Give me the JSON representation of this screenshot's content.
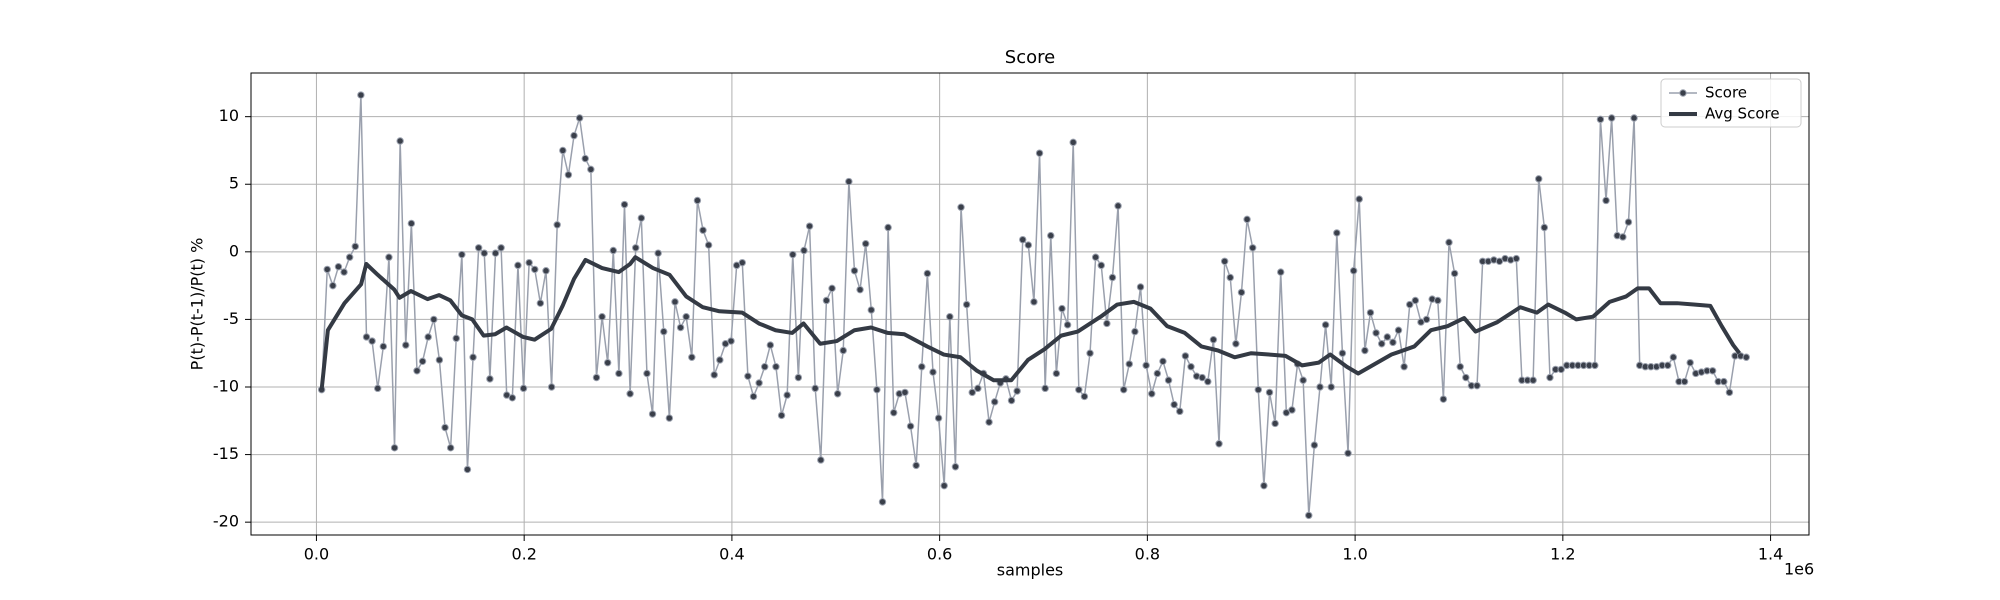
{
  "chart_data": {
    "type": "line",
    "title": "Score",
    "xlabel": "samples",
    "ylabel": "P(t)-P(t-1)/P(t) %",
    "x_offset_label": "1e6",
    "xlim": [
      -63000,
      1437000
    ],
    "ylim": [
      -20.95,
      13.23
    ],
    "xticks": [
      {
        "value": 0,
        "label": "0.0"
      },
      {
        "value": 200000,
        "label": "0.2"
      },
      {
        "value": 400000,
        "label": "0.4"
      },
      {
        "value": 600000,
        "label": "0.6"
      },
      {
        "value": 800000,
        "label": "0.8"
      },
      {
        "value": 1000000,
        "label": "1.0"
      },
      {
        "value": 1200000,
        "label": "1.2"
      },
      {
        "value": 1400000,
        "label": "1.4"
      }
    ],
    "yticks": [
      -20,
      -15,
      -10,
      -5,
      0,
      5,
      10
    ],
    "grid": true,
    "legend": "upper right",
    "series": [
      {
        "name": "Score",
        "color": "#9aa0ad",
        "marker_color": "#3a3f4a",
        "marker": true,
        "line_width": 1.5,
        "x": [
          5000,
          10400,
          15800,
          21200,
          26600,
          32000,
          37400,
          42800,
          48200,
          53600,
          59000,
          64400,
          69800,
          75200,
          80600,
          86000,
          91400,
          96800,
          102200,
          107600,
          113000,
          118400,
          123800,
          129200,
          134600,
          140000,
          145400,
          150800,
          156200,
          161600,
          167000,
          172400,
          177800,
          183200,
          188600,
          194000,
          199400,
          204800,
          210200,
          215600,
          221000,
          226400,
          231800,
          237200,
          242600,
          248000,
          253400,
          258800,
          264200,
          269600,
          275000,
          280400,
          285800,
          291200,
          296600,
          302000,
          307400,
          312800,
          318200,
          323600,
          329000,
          334400,
          339800,
          345200,
          350600,
          356000,
          361400,
          366800,
          372200,
          377600,
          383000,
          388400,
          393800,
          399200,
          404600,
          410000,
          415400,
          420800,
          426200,
          431600,
          437000,
          442400,
          447800,
          453200,
          458600,
          464000,
          469400,
          474800,
          480200,
          485600,
          491000,
          496400,
          501800,
          507200,
          512600,
          518000,
          523400,
          528800,
          534200,
          539600,
          545000,
          550400,
          555800,
          561200,
          566600,
          572000,
          577400,
          582800,
          588200,
          593600,
          599000,
          604400,
          609800,
          615200,
          620600,
          626000,
          631400,
          636800,
          642200,
          647600,
          653000,
          658400,
          663800,
          669200,
          674600,
          680000,
          685400,
          690800,
          696200,
          701600,
          707000,
          712400,
          717800,
          723200,
          728600,
          734000,
          739400,
          744800,
          750200,
          755600,
          761000,
          766400,
          771800,
          777200,
          782600,
          788000,
          793400,
          798800,
          804200,
          809600,
          815000,
          820400,
          825800,
          831200,
          836600,
          842000,
          847400,
          852800,
          858200,
          863600,
          869000,
          874400,
          879800,
          885200,
          890600,
          896000,
          901400,
          906800,
          912200,
          917600,
          923000,
          928400,
          933800,
          939200,
          944600,
          950000,
          955400,
          960800,
          966200,
          971600,
          977000,
          982400,
          987800,
          993200,
          998600,
          1004000,
          1009400,
          1014800,
          1020200,
          1025600,
          1031000,
          1036400,
          1041800,
          1047200,
          1052600,
          1058000,
          1063400,
          1068800,
          1074200,
          1079600,
          1085000,
          1090400,
          1095800,
          1101200,
          1106600,
          1112000,
          1117400,
          1122800,
          1128200,
          1133600,
          1139000,
          1144400,
          1149800,
          1155200,
          1160600,
          1166000,
          1171400,
          1176800,
          1182200,
          1187600,
          1193000,
          1198400,
          1203800,
          1209200,
          1214600,
          1220000,
          1225400,
          1230800,
          1236200,
          1241600,
          1247000,
          1252400,
          1257800,
          1263200,
          1268600,
          1274000,
          1279400,
          1284800,
          1290200,
          1295600,
          1301000,
          1306400,
          1311800,
          1317200,
          1322600,
          1328000,
          1333400,
          1338800,
          1344200,
          1349600,
          1355000,
          1360400,
          1365800,
          1371200,
          1376600
        ],
        "values": [
          -10.2,
          -1.3,
          -2.5,
          -1.1,
          -1.5,
          -0.4,
          0.4,
          11.6,
          -6.3,
          -6.6,
          -10.1,
          -7.0,
          -0.4,
          -14.5,
          8.2,
          -6.9,
          2.1,
          -8.8,
          -8.1,
          -6.3,
          -5.0,
          -8.0,
          -13.0,
          -14.5,
          -6.4,
          -0.2,
          -16.1,
          -7.8,
          0.3,
          -0.1,
          -9.4,
          -0.1,
          0.3,
          -10.6,
          -10.8,
          -1.0,
          -10.1,
          -0.8,
          -1.3,
          -3.8,
          -1.4,
          -10.0,
          2.0,
          7.5,
          5.7,
          8.6,
          9.9,
          6.9,
          6.1,
          -9.3,
          -4.8,
          -8.2,
          0.1,
          -9.0,
          3.5,
          -10.5,
          0.3,
          2.5,
          -9.0,
          -12.0,
          -0.1,
          -5.9,
          -12.3,
          -3.7,
          -5.6,
          -4.8,
          -7.8,
          3.8,
          1.6,
          0.5,
          -9.1,
          -8.0,
          -6.8,
          -6.6,
          -1.0,
          -0.8,
          -9.2,
          -10.7,
          -9.7,
          -8.5,
          -6.9,
          -8.5,
          -12.1,
          -10.6,
          -0.2,
          -9.3,
          0.1,
          1.9,
          -10.1,
          -15.4,
          -3.6,
          -2.7,
          -10.5,
          -7.3,
          5.2,
          -1.4,
          -2.8,
          0.6,
          -4.3,
          -10.2,
          -18.5,
          1.8,
          -11.9,
          -10.5,
          -10.4,
          -12.9,
          -15.8,
          -8.5,
          -1.6,
          -8.9,
          -12.3,
          -17.3,
          -4.8,
          -15.9,
          3.3,
          -3.9,
          -10.4,
          -10.1,
          -9.0,
          -12.6,
          -11.1,
          -9.7,
          -9.4,
          -11.0,
          -10.3,
          0.9,
          0.5,
          -3.7,
          7.3,
          -10.1,
          1.2,
          -9.0,
          -4.2,
          -5.4,
          8.1,
          -10.2,
          -10.7,
          -7.5,
          -0.4,
          -1.0,
          -5.3,
          -1.9,
          3.4,
          -10.2,
          -8.3,
          -5.9,
          -2.6,
          -8.4,
          -10.5,
          -9.0,
          -8.1,
          -9.5,
          -11.3,
          -11.8,
          -7.7,
          -8.5,
          -9.2,
          -9.3,
          -9.6,
          -6.5,
          -14.2,
          -0.7,
          -1.9,
          -6.8,
          -3.0,
          2.4,
          0.3,
          -10.2,
          -17.3,
          -10.4,
          -12.7,
          -1.5,
          -11.9,
          -11.7,
          -8.3,
          -9.5,
          -19.5,
          -14.3,
          -10.0,
          -5.4,
          -10.0,
          1.4,
          -7.5,
          -14.9,
          -1.4,
          3.9,
          -7.3,
          -4.5,
          -6.0,
          -6.8,
          -6.3,
          -6.7,
          -5.8,
          -8.5,
          -3.9,
          -3.6,
          -5.2,
          -5.0,
          -3.5,
          -3.6,
          -10.9,
          0.7,
          -1.6,
          -8.5,
          -9.3,
          -9.9,
          -9.9,
          -0.7,
          -0.7,
          -0.6,
          -0.7,
          -0.5,
          -0.6,
          -0.5,
          -9.5,
          -9.5,
          -9.5,
          5.4,
          1.8,
          -9.3,
          -8.7,
          -8.7,
          -8.4,
          -8.4,
          -8.4,
          -8.4,
          -8.4,
          -8.4,
          9.8,
          3.8,
          9.9,
          1.2,
          1.1,
          2.2,
          9.9,
          -8.4,
          -8.5,
          -8.5,
          -8.5,
          -8.4,
          -8.4,
          -7.8,
          -9.6,
          -9.6,
          -8.2,
          -9.0,
          -8.9,
          -8.8,
          -8.8,
          -9.6,
          -9.6,
          -10.4,
          -7.7,
          -7.7,
          -7.8
        ]
      },
      {
        "name": "Avg Score",
        "color": "#343a44",
        "marker": false,
        "line_width": 4,
        "x": [
          5000,
          11000,
          27000,
          43000,
          48000,
          59000,
          75000,
          80000,
          91000,
          107000,
          118000,
          129000,
          140000,
          150000,
          161000,
          172000,
          183000,
          199000,
          210000,
          226000,
          237000,
          248000,
          259000,
          275000,
          291000,
          302000,
          307000,
          324000,
          340000,
          356000,
          372000,
          388000,
          410000,
          426000,
          442000,
          458000,
          469000,
          485000,
          501000,
          518000,
          534000,
          550000,
          566000,
          588000,
          604000,
          620000,
          636000,
          652000,
          669000,
          685000,
          701000,
          717000,
          733000,
          755000,
          771000,
          787000,
          803000,
          819000,
          836000,
          852000,
          868000,
          884000,
          900000,
          917000,
          933000,
          949000,
          965000,
          976000,
          992000,
          1003000,
          1019000,
          1035000,
          1057000,
          1073000,
          1089000,
          1105000,
          1116000,
          1137000,
          1159000,
          1175000,
          1186000,
          1202000,
          1213000,
          1229000,
          1245000,
          1261000,
          1272000,
          1283000,
          1294000,
          1310000,
          1326000,
          1342000,
          1353000,
          1364000,
          1370000
        ],
        "values": [
          -10.2,
          -5.8,
          -3.8,
          -2.4,
          -0.9,
          -1.7,
          -2.8,
          -3.4,
          -2.9,
          -3.5,
          -3.2,
          -3.6,
          -4.7,
          -5.0,
          -6.2,
          -6.1,
          -5.6,
          -6.3,
          -6.5,
          -5.7,
          -4.0,
          -2.0,
          -0.6,
          -1.2,
          -1.5,
          -0.9,
          -0.4,
          -1.2,
          -1.7,
          -3.3,
          -4.1,
          -4.4,
          -4.5,
          -5.3,
          -5.8,
          -6.0,
          -5.3,
          -6.8,
          -6.6,
          -5.8,
          -5.6,
          -6.0,
          -6.1,
          -7.0,
          -7.6,
          -7.8,
          -8.8,
          -9.5,
          -9.5,
          -8.0,
          -7.2,
          -6.2,
          -5.9,
          -4.8,
          -3.9,
          -3.7,
          -4.2,
          -5.5,
          -6.0,
          -7.0,
          -7.3,
          -7.8,
          -7.5,
          -7.6,
          -7.7,
          -8.4,
          -8.2,
          -7.6,
          -8.5,
          -9.0,
          -8.3,
          -7.6,
          -7.0,
          -5.8,
          -5.5,
          -4.9,
          -5.9,
          -5.2,
          -4.1,
          -4.5,
          -3.9,
          -4.5,
          -5.0,
          -4.8,
          -3.7,
          -3.3,
          -2.7,
          -2.7,
          -3.8,
          -3.8,
          -3.9,
          -4.0,
          -5.5,
          -6.9,
          -7.5
        ]
      }
    ]
  }
}
